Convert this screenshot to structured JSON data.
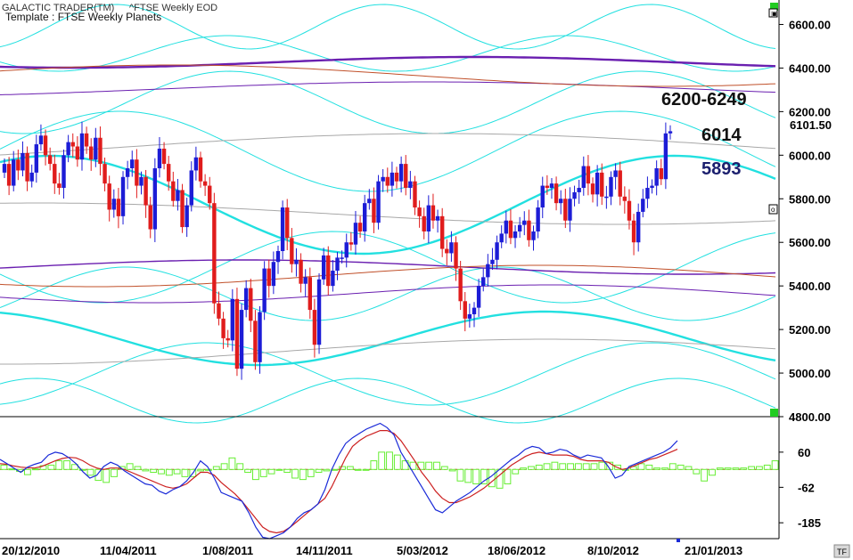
{
  "header": {
    "app": "GALACTIC TRADER(TM)",
    "symbol": "^FTSE Weekly EOD",
    "template": "Template : FTSE Weekly Planets"
  },
  "labels": {
    "range": "6200-6249",
    "target1": "6014",
    "target2": "5893",
    "last_price": "6101.50"
  },
  "y_axis_ticks": [
    "6600.00",
    "6400.00",
    "6200.00",
    "6000.00",
    "5800.00",
    "5600.00",
    "5400.00",
    "5200.00",
    "5000.00",
    "4800.00"
  ],
  "osc_ticks": [
    "60",
    "-62",
    "-185"
  ],
  "x_axis_ticks": [
    "20/12/2010",
    "11/04/2011",
    "1/08/2011",
    "14/11/2011",
    "5/03/2012",
    "18/06/2012",
    "8/10/2012",
    "21/01/2013"
  ],
  "corner": "TF",
  "colors": {
    "up": "#1c1cd6",
    "down": "#e01c1c",
    "planet_cyan": "#22e0e0",
    "planet_purple": "#6a1fb0",
    "planet_brown": "#c0502a",
    "planet_gray": "#a8a8a8",
    "hist": "#66ee33",
    "osc_blue": "#1a2ad8",
    "osc_red": "#cc2020"
  },
  "chart_data": {
    "type": "candlestick",
    "title": "Template : FTSE Weekly Planets",
    "ylim": [
      4800,
      6700
    ],
    "x_start": "20/12/2010",
    "x_end": "21/01/2013",
    "closes": [
      5960,
      5860,
      5980,
      5930,
      6010,
      5880,
      5920,
      6050,
      6090,
      6000,
      5960,
      5870,
      5850,
      6000,
      6060,
      6040,
      5980,
      6100,
      6040,
      5980,
      6080,
      5960,
      5870,
      5750,
      5800,
      5720,
      5900,
      5940,
      5980,
      5860,
      5900,
      5770,
      5660,
      5940,
      6030,
      5960,
      5880,
      5790,
      5840,
      5670,
      5770,
      5930,
      5990,
      5880,
      5860,
      5780,
      5320,
      5250,
      5160,
      5150,
      5340,
      5020,
      5290,
      5390,
      5240,
      5050,
      5280,
      5480,
      5400,
      5510,
      5560,
      5760,
      5620,
      5500,
      5520,
      5410,
      5440,
      5290,
      5130,
      5430,
      5540,
      5400,
      5470,
      5530,
      5530,
      5600,
      5590,
      5690,
      5650,
      5780,
      5800,
      5690,
      5880,
      5900,
      5860,
      5920,
      5880,
      5960,
      5850,
      5880,
      5760,
      5720,
      5650,
      5770,
      5700,
      5720,
      5570,
      5550,
      5600,
      5480,
      5330,
      5250,
      5270,
      5300,
      5400,
      5440,
      5500,
      5520,
      5600,
      5640,
      5700,
      5620,
      5650,
      5680,
      5700,
      5610,
      5650,
      5760,
      5860,
      5850,
      5870,
      5780,
      5800,
      5700,
      5800,
      5830,
      5850,
      5950,
      5870,
      5820,
      5920,
      5810,
      5810,
      5900,
      5930,
      5810,
      5790,
      5700,
      5600,
      5740,
      5800,
      5850,
      5860,
      5940,
      5890,
      6100,
      6110
    ],
    "ytick_labels": [
      "6600.00",
      "6400.00",
      "6200.00",
      "6000.00",
      "5800.00",
      "5600.00",
      "5400.00",
      "5200.00",
      "5000.00",
      "4800.00"
    ],
    "xtick_labels": [
      "20/12/2010",
      "11/04/2011",
      "1/08/2011",
      "14/11/2011",
      "5/03/2012",
      "18/06/2012",
      "8/10/2012",
      "21/01/2013"
    ],
    "annotations": [
      "6200-6249",
      "6014",
      "5893"
    ],
    "last_value": "6101.50",
    "oscillator": {
      "ylim": [
        -240,
        180
      ],
      "ytick_values": [
        60,
        -62,
        -185
      ],
      "fast_line": [
        35,
        20,
        5,
        -10,
        8,
        18,
        25,
        50,
        60,
        55,
        40,
        20,
        -8,
        -30,
        -20,
        10,
        25,
        15,
        -5,
        -20,
        -35,
        -50,
        -55,
        -75,
        -85,
        -70,
        -60,
        -40,
        -10,
        30,
        10,
        -30,
        -80,
        -90,
        -100,
        -110,
        -150,
        -200,
        -235,
        -240,
        -230,
        -220,
        -200,
        -170,
        -150,
        -140,
        -120,
        -70,
        0,
        50,
        90,
        110,
        125,
        140,
        150,
        160,
        145,
        120,
        60,
        20,
        -20,
        -60,
        -100,
        -140,
        -150,
        -130,
        -110,
        -95,
        -80,
        -60,
        -40,
        -25,
        -5,
        15,
        35,
        50,
        70,
        80,
        75,
        55,
        60,
        70,
        65,
        50,
        40,
        50,
        45,
        40,
        10,
        -30,
        -20,
        10,
        20,
        30,
        40,
        50,
        60,
        75,
        100
      ],
      "slow_line": [
        20,
        18,
        12,
        8,
        6,
        5,
        10,
        20,
        30,
        38,
        42,
        40,
        30,
        15,
        5,
        0,
        5,
        5,
        0,
        -10,
        -20,
        -30,
        -40,
        -50,
        -60,
        -65,
        -60,
        -50,
        -30,
        -10,
        -10,
        -20,
        -45,
        -65,
        -85,
        -110,
        -140,
        -170,
        -200,
        -215,
        -220,
        -215,
        -200,
        -180,
        -160,
        -140,
        -120,
        -100,
        -60,
        -10,
        40,
        80,
        100,
        115,
        125,
        135,
        135,
        125,
        100,
        65,
        30,
        -10,
        -40,
        -75,
        -100,
        -115,
        -115,
        -105,
        -95,
        -80,
        -65,
        -45,
        -25,
        -5,
        15,
        30,
        45,
        55,
        60,
        55,
        50,
        50,
        50,
        45,
        35,
        30,
        30,
        30,
        25,
        10,
        0,
        5,
        15,
        25,
        35,
        40,
        50,
        60,
        70
      ],
      "histogram": [
        15,
        2,
        -7,
        -18,
        2,
        13,
        15,
        30,
        30,
        17,
        -2,
        -20,
        -38,
        -45,
        -25,
        10,
        20,
        10,
        -5,
        -10,
        -15,
        -20,
        -15,
        -25,
        -25,
        -5,
        0,
        10,
        20,
        40,
        20,
        -10,
        -35,
        -25,
        -15,
        0,
        -10,
        -30,
        -35,
        -25,
        -10,
        -5,
        0,
        10,
        10,
        0,
        0,
        30,
        60,
        60,
        50,
        30,
        25,
        25,
        25,
        25,
        10,
        -5,
        -40,
        -45,
        -50,
        -50,
        -60,
        -65,
        -50,
        -15,
        5,
        10,
        15,
        20,
        25,
        20,
        20,
        20,
        20,
        20,
        25,
        25,
        15,
        0,
        10,
        20,
        15,
        5,
        5,
        20,
        15,
        10,
        -15,
        -40,
        -20,
        5,
        5,
        5,
        5,
        10,
        10,
        15,
        30
      ]
    }
  }
}
